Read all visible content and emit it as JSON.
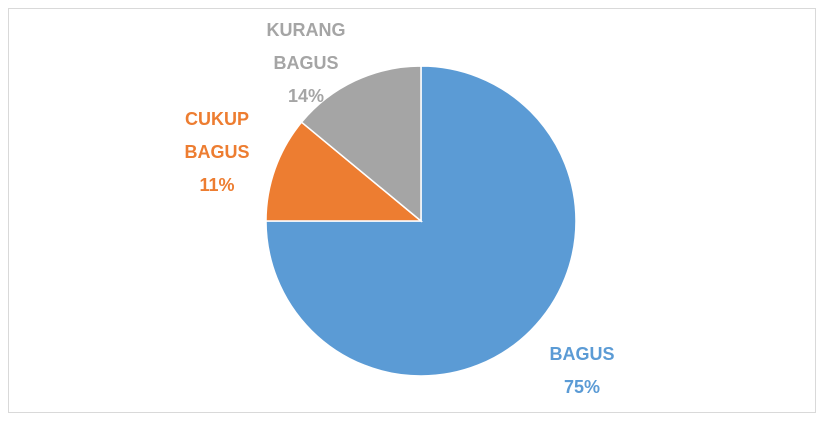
{
  "chart_data": {
    "type": "pie",
    "categories": [
      "BAGUS",
      "CUKUP BAGUS",
      "KURANG BAGUS"
    ],
    "values": [
      75,
      11,
      14
    ],
    "value_labels": [
      "75%",
      "11%",
      "14%"
    ],
    "colors": [
      "#5b9bd5",
      "#ed7d31",
      "#a5a5a5"
    ]
  }
}
